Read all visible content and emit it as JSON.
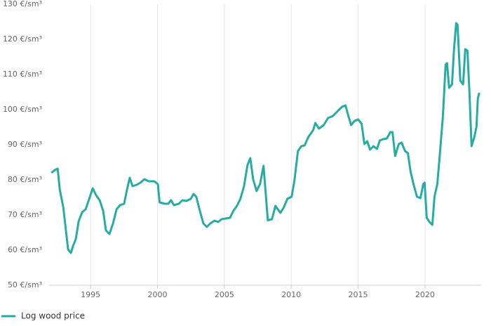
{
  "chart_data": {
    "type": "line",
    "x": [
      1992.07,
      1992.33,
      1992.54,
      1992.7,
      1992.96,
      1993.17,
      1993.32,
      1993.53,
      1993.69,
      1993.9,
      1994.11,
      1994.37,
      1994.63,
      1994.9,
      1995.16,
      1995.42,
      1995.68,
      1995.94,
      1996.15,
      1996.41,
      1996.68,
      1996.94,
      1997.2,
      1997.51,
      1997.72,
      1997.93,
      1998.14,
      1998.46,
      1998.72,
      1999.03,
      1999.35,
      1999.76,
      2000.03,
      2000.16,
      2000.55,
      2000.81,
      2001.02,
      2001.23,
      2001.6,
      2001.86,
      2002.17,
      2002.49,
      2002.7,
      2002.9,
      2003.17,
      2003.43,
      2003.69,
      2003.95,
      2004.27,
      2004.53,
      2004.8,
      2005.1,
      2005.42,
      2005.68,
      2005.94,
      2006.2,
      2006.47,
      2006.73,
      2006.94,
      2007.15,
      2007.41,
      2007.67,
      2007.93,
      2008.25,
      2008.56,
      2008.82,
      2009.19,
      2009.45,
      2009.71,
      2010.03,
      2010.24,
      2010.5,
      2010.76,
      2011.0,
      2011.28,
      2011.65,
      2011.8,
      2012.07,
      2012.43,
      2012.75,
      2013.12,
      2013.48,
      2013.8,
      2014.06,
      2014.27,
      2014.48,
      2014.74,
      2015.0,
      2015.26,
      2015.47,
      2015.68,
      2015.89,
      2016.15,
      2016.41,
      2016.62,
      2016.88,
      2017.15,
      2017.41,
      2017.57,
      2017.77,
      2018.04,
      2018.25,
      2018.51,
      2018.72,
      2018.93,
      2019.14,
      2019.4,
      2019.66,
      2019.87,
      2019.97,
      2020.13,
      2020.34,
      2020.55,
      2020.71,
      2020.92,
      2021.13,
      2021.34,
      2021.54,
      2021.65,
      2021.8,
      2022.02,
      2022.17,
      2022.33,
      2022.43,
      2022.64,
      2022.85,
      2023.01,
      2023.17,
      2023.32,
      2023.48,
      2023.69,
      2023.85,
      2023.95,
      2024.06
    ],
    "series": [
      {
        "name": "Log wood price",
        "color": "#26ada3",
        "values": [
          82,
          82.8,
          83.2,
          77.2,
          72.2,
          65.2,
          60.2,
          59.2,
          61.2,
          63.2,
          68.2,
          70.8,
          71.6,
          74.6,
          77.6,
          75.6,
          74.2,
          71.2,
          65.6,
          64.6,
          67.6,
          71.6,
          72.8,
          73.2,
          77.2,
          80.6,
          78.2,
          78.6,
          79.2,
          80.2,
          79.6,
          79.6,
          78.8,
          73.6,
          73.2,
          73.2,
          74.2,
          72.8,
          73.2,
          74.2,
          74,
          74.6,
          76,
          75.2,
          71.2,
          67.6,
          66.6,
          67.6,
          68.4,
          68,
          68.8,
          69,
          69.2,
          71.2,
          72.6,
          74.6,
          78.2,
          84.2,
          86.2,
          80.2,
          76.8,
          78.8,
          84,
          68.5,
          68.8,
          72.6,
          70.6,
          72.2,
          74.6,
          75.2,
          79.8,
          88.2,
          89.6,
          89.8,
          92.2,
          94.2,
          96.2,
          94.6,
          95.6,
          97.6,
          98.2,
          99.6,
          100.8,
          101.2,
          98.2,
          95.6,
          96.8,
          97.2,
          96,
          90.2,
          91,
          88.6,
          89.6,
          88.8,
          91.2,
          91.6,
          91.8,
          93.6,
          93.6,
          86.8,
          90.2,
          90.6,
          88.2,
          87.6,
          82.2,
          78.8,
          75.2,
          74.8,
          78.8,
          79.2,
          69.2,
          68,
          67.2,
          75.2,
          78.8,
          88.2,
          98.2,
          112.8,
          113.2,
          106.2,
          107.2,
          117.2,
          124.6,
          124.2,
          108.2,
          107.2,
          117.2,
          116.8,
          105.2,
          89.6,
          92.2,
          95.2,
          103.2,
          104.8
        ]
      }
    ],
    "xlim": [
      1991.9,
      2024.2
    ],
    "xticks": [
      1995,
      2000,
      2005,
      2010,
      2015,
      2020
    ],
    "ylim": [
      50,
      130
    ],
    "yticks": [
      {
        "value": 50,
        "label": "50 €/sm³"
      },
      {
        "value": 60,
        "label": "60 €/sm³"
      },
      {
        "value": 70,
        "label": "70 €/sm³"
      },
      {
        "value": 80,
        "label": "80 €/sm³"
      },
      {
        "value": 90,
        "label": "90 €/sm³"
      },
      {
        "value": 100,
        "label": "100 €/sm³"
      },
      {
        "value": 110,
        "label": "110 €/sm³"
      },
      {
        "value": 120,
        "label": "120 €/sm³"
      },
      {
        "value": 130,
        "label": "130 €/sm³"
      }
    ],
    "grid": "x",
    "legend": "bottom-left"
  }
}
